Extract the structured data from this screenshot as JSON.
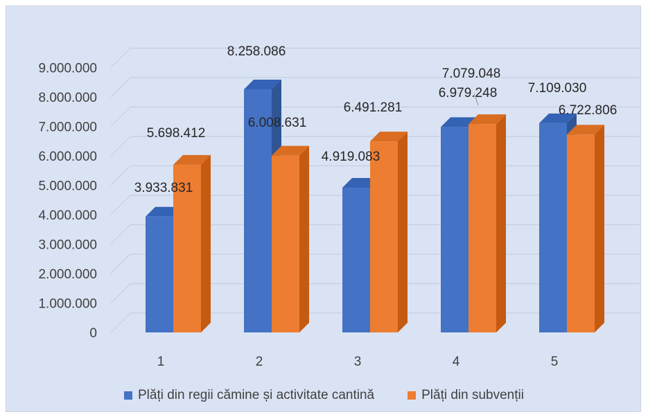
{
  "chart_data": {
    "type": "bar",
    "title": "",
    "xlabel": "",
    "ylabel": "",
    "categories": [
      "1",
      "2",
      "3",
      "4",
      "5"
    ],
    "series": [
      {
        "name": "Plăți din regii cămine și activitate cantină",
        "values": [
          3933831,
          8258086,
          4919083,
          6979248,
          7109030
        ],
        "labels": [
          "3.933.831",
          "8.258.086",
          "4.919.083",
          "6.979.248",
          "7.109.030"
        ],
        "color": "#4472c4"
      },
      {
        "name": "Plăți din subvenții",
        "values": [
          5698412,
          6008631,
          6491281,
          7079048,
          6722806
        ],
        "labels": [
          "5.698.412",
          "6.008.631",
          "6.491.281",
          "7.079.048",
          "6.722.806"
        ],
        "color": "#ed7d31"
      }
    ],
    "yticks": [
      "0",
      "1.000.000",
      "2.000.000",
      "3.000.000",
      "4.000.000",
      "5.000.000",
      "6.000.000",
      "7.000.000",
      "8.000.000",
      "9.000.000"
    ],
    "ylim": [
      0,
      9000000
    ],
    "grid": true,
    "legend_position": "bottom",
    "style": "3d-column"
  }
}
